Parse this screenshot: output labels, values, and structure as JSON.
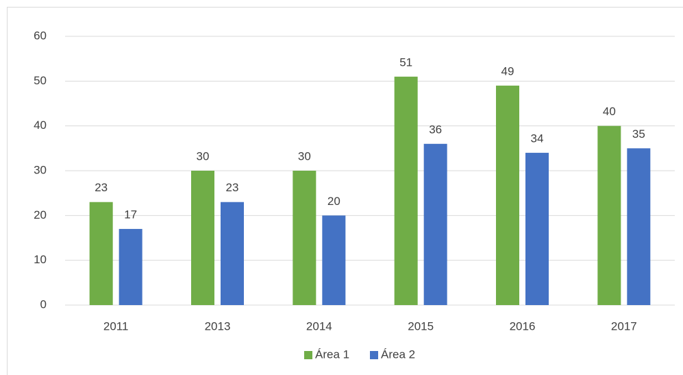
{
  "chart_data": {
    "type": "bar",
    "categories": [
      "2011",
      "2013",
      "2014",
      "2015",
      "2016",
      "2017"
    ],
    "series": [
      {
        "name": "Área 1",
        "color": "#70ad47",
        "values": [
          23,
          30,
          30,
          51,
          49,
          40
        ]
      },
      {
        "name": "Área 2",
        "color": "#4472c4",
        "values": [
          17,
          23,
          20,
          36,
          34,
          35
        ]
      }
    ],
    "ylim": [
      0,
      60
    ],
    "yticks": [
      0,
      10,
      20,
      30,
      40,
      50,
      60
    ],
    "grid": true,
    "legend": "bottom"
  }
}
